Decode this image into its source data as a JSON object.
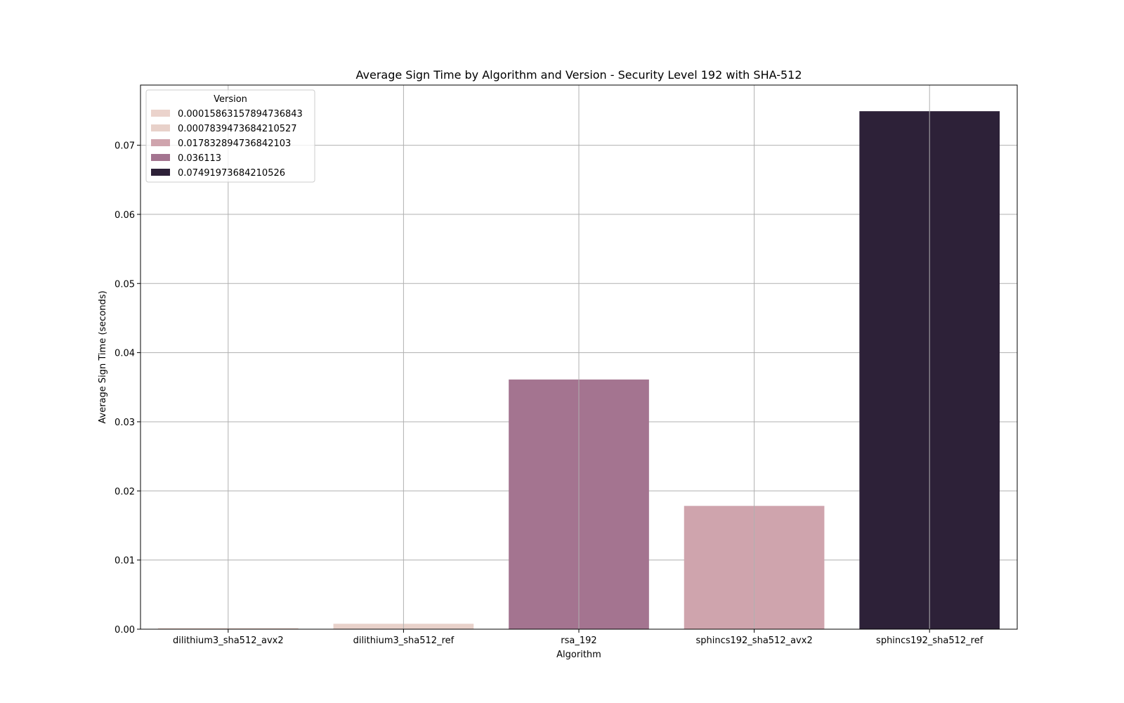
{
  "chart_data": {
    "type": "bar",
    "title": "Average Sign Time by Algorithm and Version - Security Level 192 with SHA-512",
    "xlabel": "Algorithm",
    "ylabel": "Average Sign Time (seconds)",
    "categories": [
      "dilithium3_sha512_avx2",
      "dilithium3_sha512_ref",
      "rsa_192",
      "sphincs192_sha512_avx2",
      "sphincs192_sha512_ref"
    ],
    "values": [
      0.00015863157894736843,
      0.0007839473684210527,
      0.036113,
      0.017832894736842103,
      0.07491973684210526
    ],
    "bar_colors": [
      "#ebd3cc",
      "#e8d1ca",
      "#a47490",
      "#cfa4ad",
      "#2d2138"
    ],
    "ylim": [
      0,
      0.0787
    ],
    "yticks": [
      0.0,
      0.01,
      0.02,
      0.03,
      0.04,
      0.05,
      0.06,
      0.07
    ],
    "ytick_labels": [
      "0.00",
      "0.01",
      "0.02",
      "0.03",
      "0.04",
      "0.05",
      "0.06",
      "0.07"
    ],
    "grid": true,
    "legend": {
      "title": "Version",
      "placement": "top-left",
      "entries": [
        {
          "label": "0.00015863157894736843",
          "color": "#ebd3cc"
        },
        {
          "label": "0.0007839473684210527",
          "color": "#e8d1ca"
        },
        {
          "label": "0.017832894736842103",
          "color": "#cfa4ad"
        },
        {
          "label": "0.036113",
          "color": "#a47490"
        },
        {
          "label": "0.07491973684210526",
          "color": "#2d2138"
        }
      ]
    }
  }
}
